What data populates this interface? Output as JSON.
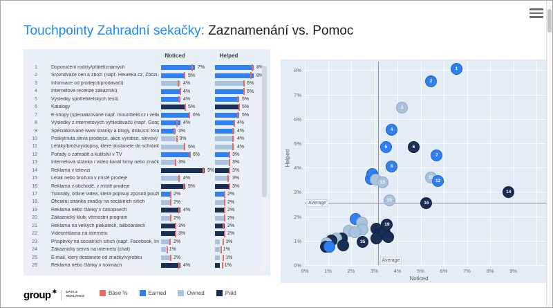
{
  "title": {
    "highlight": "Touchpointy Zahradní sekačky:",
    "rest": " Zaznamenání vs. Pomoc"
  },
  "colors": {
    "earned": "#2f80f2",
    "owned": "#a9c2de",
    "paid": "#1a2f55",
    "base": "#ec6a5f",
    "title_accent": "#1b87f0"
  },
  "list": {
    "columns": {
      "noticed": "Noticed",
      "helped": "Helped"
    }
  },
  "legend": {
    "items": [
      {
        "label": "Base %",
        "key": "base"
      },
      {
        "label": "Earned",
        "key": "earned"
      },
      {
        "label": "Owned",
        "key": "owned"
      },
      {
        "label": "Paid",
        "key": "paid"
      }
    ]
  },
  "logo": {
    "brand": "group",
    "mark": "✱",
    "division_line1": "DATA &",
    "division_line2": "ANALYTICS"
  },
  "chart_data": [
    {
      "type": "bar",
      "columns": [
        "Noticed",
        "Helped"
      ],
      "value_suffix": "%",
      "categories": [
        "Doporučení rodiny/přátel/známých",
        "Srovnávače cen a zboží (např. Heureka.cz, Zbozi.cz,",
        "Informace od prodejců/prodavačů",
        "Internetové recenze zákazníků",
        "Výsledky spotřebitelských testů",
        "Katalogy",
        "E-shopy (specializované např. mountfield.cz i velké e-",
        "Výsledky z internetových vyhledávačů (např. Google,",
        "Specializované www stránky a blogy, diskusní fóra vě",
        "Poskytnutá sleva prodejce, akce výrobce, slevový kup",
        "Letáky/brožury/dopisy, které dostanete do schránky",
        "Pořady o zahradě a kutilství v TV",
        "Internetová stránka / video kanál firmy nebo značky",
        "Reklama v televizi",
        "Leták nebo brožura v místě prodeje",
        "Reklama v obchodě, v místě prodeje",
        "Tutoriály, online videa, která popisují způsob používá",
        "Oficiální stránka značky na sociálních sítích",
        "Reklama nebo články v časopisech",
        "Zákaznický klub, věrnostní program",
        "Reklama na velkých plakátech, billboardech",
        "Videoreklama na internetu",
        "Příspěvky na sociálních sítích (např. Facebook, Insta",
        "Zákaznický servis na internetu (chat)",
        "E-mail, který dostanete od značky/výrobku",
        "Reklama nebo články v novinách"
      ],
      "series": [
        {
          "name": "Noticed",
          "values": [
            7,
            5,
            4,
            4,
            4,
            5,
            6,
            4,
            3,
            3,
            5,
            6,
            3,
            9,
            4,
            5,
            2,
            2,
            4,
            2,
            3,
            3,
            2,
            1,
            2,
            4
          ]
        },
        {
          "name": "Helped",
          "values": [
            8,
            8,
            6,
            6,
            5,
            5,
            5,
            4,
            4,
            4,
            4,
            3,
            3,
            3,
            3,
            3,
            2,
            2,
            2,
            2,
            2,
            2,
            1,
            1,
            1,
            1
          ]
        }
      ],
      "point_categories": [
        "earned",
        "earned",
        "owned",
        "earned",
        "earned",
        "paid",
        "earned",
        "earned",
        "earned",
        "owned",
        "owned",
        "earned",
        "owned",
        "paid",
        "owned",
        "paid",
        "earned",
        "owned",
        "paid",
        "owned",
        "paid",
        "paid",
        "owned",
        "owned",
        "owned",
        "paid"
      ],
      "base_noticed": [
        6.3,
        4.7,
        3.4,
        3.9,
        3.6,
        4.9,
        5.7,
        3.2,
        2.6,
        3.2,
        4.7,
        5.9,
        2.9,
        8.6,
        3.6,
        4.6,
        1.9,
        1.9,
        3.5,
        1.9,
        2.9,
        2.8,
        1.7,
        1.1,
        1.9,
        3.6
      ],
      "base_helped": [
        7.6,
        7.3,
        5.8,
        5.9,
        4.6,
        4.9,
        4.6,
        3.9,
        3.5,
        3.6,
        3.6,
        2.9,
        2.9,
        2.9,
        2.6,
        2.9,
        1.9,
        1.9,
        1.9,
        1.9,
        1.6,
        1.9,
        1.6,
        1.1,
        1.6,
        1.4
      ]
    },
    {
      "type": "scatter",
      "xlabel": "Noticed",
      "ylabel": "Helped",
      "x_ticks": [
        "0%",
        "1%",
        "2%",
        "3%",
        "4%",
        "5%",
        "6%",
        "7%",
        "8%",
        "9%"
      ],
      "y_ticks": [
        "0%",
        "1%",
        "2%",
        "3%",
        "4%",
        "5%",
        "6%",
        "7%",
        "8%"
      ],
      "xlim": [
        0,
        10.5
      ],
      "ylim": [
        0,
        8.4
      ],
      "average": {
        "x": 3.15,
        "y": 2.55,
        "label": "Average"
      },
      "points": [
        {
          "x": 2.2,
          "y": 1.9,
          "category": "earned"
        },
        {
          "x": 2.45,
          "y": 1.75,
          "category": "owned"
        },
        {
          "x": 2.5,
          "y": 1.45,
          "category": "owned"
        },
        {
          "x": 1.9,
          "y": 1.4,
          "category": "owned"
        },
        {
          "x": 2.15,
          "y": 1.35,
          "category": "owned"
        },
        {
          "x": 1.6,
          "y": 1.1,
          "category": "paid"
        },
        {
          "x": 1.35,
          "y": 1.1,
          "category": "owned"
        },
        {
          "x": 1.15,
          "y": 1.0,
          "category": "paid"
        },
        {
          "x": 0.95,
          "y": 0.9,
          "category": "owned"
        },
        {
          "x": 0.9,
          "y": 0.75,
          "category": "paid"
        },
        {
          "x": 1.05,
          "y": 0.75,
          "category": "earned"
        },
        {
          "x": 1.65,
          "y": 0.8,
          "category": "paid"
        },
        {
          "x": 3.1,
          "y": 1.5,
          "category": "paid"
        },
        {
          "x": 3.2,
          "y": 1.25,
          "category": "paid"
        },
        {
          "x": 3.1,
          "y": 1.1,
          "category": "paid"
        },
        {
          "x": 3.45,
          "y": 1.35,
          "category": "paid"
        },
        {
          "x": 3.6,
          "y": 1.15,
          "category": "paid"
        },
        {
          "x": 2.85,
          "y": 3.55,
          "category": "earned"
        },
        {
          "x": 2.9,
          "y": 3.75,
          "category": "earned",
          "label": "9"
        },
        {
          "x": 3.05,
          "y": 3.5,
          "category": "owned",
          "label": "10"
        },
        {
          "x": 6.55,
          "y": 8.05,
          "category": "earned",
          "label": "1",
          "labeled": true
        },
        {
          "x": 5.45,
          "y": 7.55,
          "category": "earned",
          "label": "2",
          "labeled": true
        },
        {
          "x": 4.2,
          "y": 6.45,
          "category": "owned",
          "label": "3",
          "labeled": true
        },
        {
          "x": 3.75,
          "y": 5.55,
          "category": "earned",
          "label": "4",
          "labeled": true
        },
        {
          "x": 3.5,
          "y": 4.85,
          "category": "earned",
          "label": "5",
          "labeled": true
        },
        {
          "x": 4.7,
          "y": 4.85,
          "category": "paid",
          "label": "6",
          "labeled": true
        },
        {
          "x": 5.7,
          "y": 4.5,
          "category": "earned",
          "label": "7",
          "labeled": true
        },
        {
          "x": 3.75,
          "y": 4.05,
          "category": "earned",
          "label": "8",
          "labeled": true
        },
        {
          "x": 5.45,
          "y": 3.6,
          "category": "owned",
          "label": "11",
          "labeled": true
        },
        {
          "x": 5.75,
          "y": 3.45,
          "category": "earned",
          "label": "12",
          "labeled": true
        },
        {
          "x": 3.35,
          "y": 3.4,
          "category": "owned",
          "label": "13",
          "labeled": true
        },
        {
          "x": 8.8,
          "y": 3.0,
          "category": "paid",
          "label": "14",
          "labeled": true
        },
        {
          "x": 3.65,
          "y": 2.65,
          "category": "owned",
          "label": "15",
          "labeled": true
        },
        {
          "x": 5.25,
          "y": 2.55,
          "category": "paid",
          "label": "16",
          "labeled": true
        },
        {
          "x": 3.55,
          "y": 1.65,
          "category": "paid",
          "label": "19",
          "labeled": true
        },
        {
          "x": 2.5,
          "y": 0.95,
          "category": "paid",
          "label": "35",
          "labeled": true
        }
      ]
    }
  ]
}
